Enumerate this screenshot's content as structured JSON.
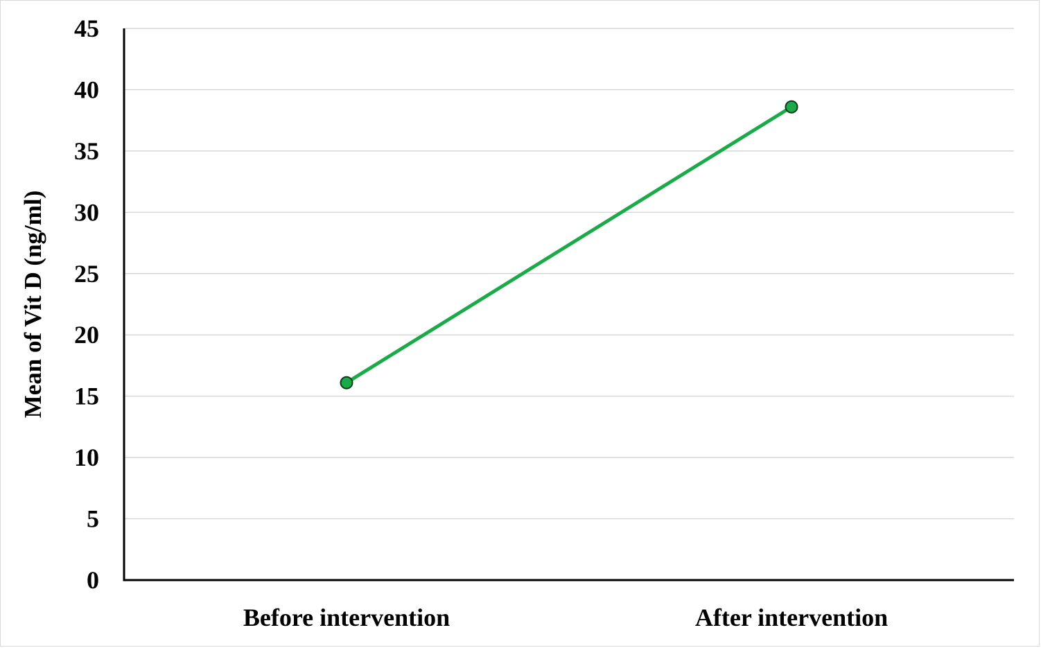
{
  "chart_data": {
    "type": "line",
    "title": "",
    "xlabel": "",
    "ylabel": "Mean of Vit D (ng/ml)",
    "categories": [
      "Before intervention",
      "After intervention"
    ],
    "series": [
      {
        "values": [
          16.1,
          38.6
        ]
      }
    ],
    "ylim": [
      0,
      45
    ],
    "yticks": [
      "0",
      "5",
      "10",
      "15",
      "20",
      "25",
      "30",
      "35",
      "40",
      "45"
    ],
    "grid": true,
    "legend": "none",
    "colors": {
      "line": "#1aaa48",
      "marker_fill": "#1aaa48",
      "marker_stroke": "#0a3a1a",
      "grid": "#cfcfcf",
      "axis": "#000000"
    }
  }
}
